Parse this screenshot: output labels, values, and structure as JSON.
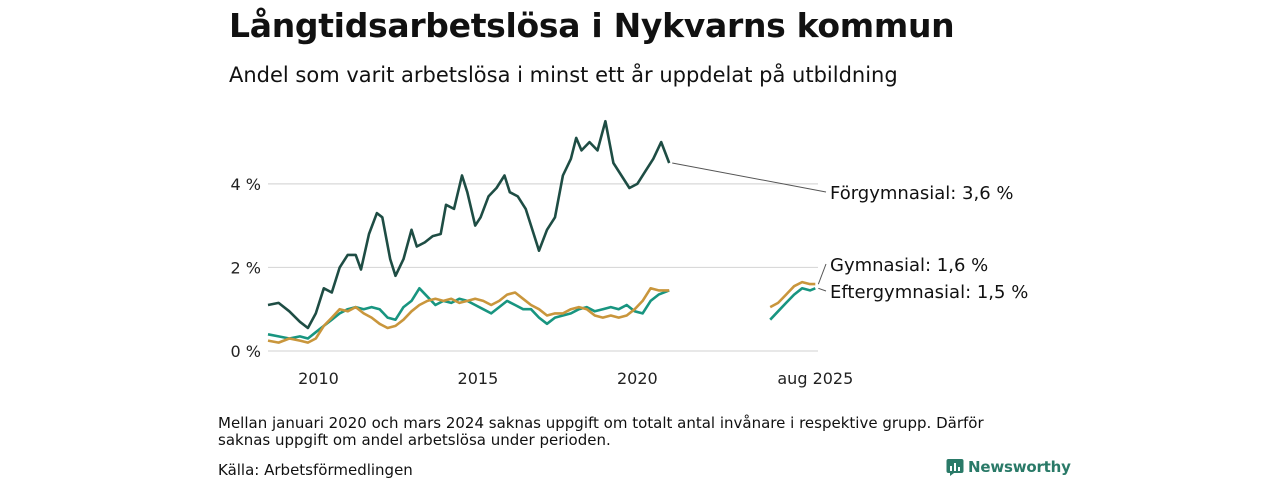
{
  "header": {
    "title": "Långtidsarbetslösa i Nykvarns kommun",
    "subtitle": "Andel som varit arbetslösa i minst ett år uppdelat på utbildning"
  },
  "footer": {
    "note": "Mellan januari 2020 och mars 2024 saknas uppgift om totalt antal invånare i respektive grupp. Därför saknas uppgift om andel arbetslösa under perioden.",
    "source": "Källa: Arbetsförmedlingen",
    "brand": "Newsworthy"
  },
  "colors": {
    "forgymnasial": "#1e4d44",
    "gymnasial": "#c9963c",
    "eftergymnasial": "#189580",
    "grid": "#d9d9d9",
    "brand": "#2a7a68"
  },
  "chart_data": {
    "type": "line",
    "y_tick_labels": [
      "0 %",
      "2 %",
      "4 %"
    ],
    "y_ticks": [
      0,
      2,
      4
    ],
    "ylim": [
      0,
      5.6
    ],
    "x_tick_labels": [
      "2010",
      "2015",
      "2020",
      "aug 2025"
    ],
    "x_ticks": [
      "2010-01",
      "2015-01",
      "2020-01",
      "2025-08"
    ],
    "xlim": [
      "2008-06",
      "2025-09"
    ],
    "gap": [
      "2021-01",
      "2024-03"
    ],
    "grid": true,
    "series": [
      {
        "name": "Förgymnasial",
        "end_label": "Förgymnasial: 3,6 %",
        "color_key": "forgymnasial",
        "points": [
          [
            "2008-06",
            1.1
          ],
          [
            "2008-10",
            1.15
          ],
          [
            "2009-02",
            0.95
          ],
          [
            "2009-06",
            0.7
          ],
          [
            "2009-09",
            0.55
          ],
          [
            "2009-12",
            0.9
          ],
          [
            "2010-03",
            1.5
          ],
          [
            "2010-06",
            1.4
          ],
          [
            "2010-09",
            2.0
          ],
          [
            "2010-12",
            2.3
          ],
          [
            "2011-03",
            2.3
          ],
          [
            "2011-05",
            1.95
          ],
          [
            "2011-08",
            2.8
          ],
          [
            "2011-11",
            3.3
          ],
          [
            "2012-01",
            3.2
          ],
          [
            "2012-04",
            2.2
          ],
          [
            "2012-06",
            1.8
          ],
          [
            "2012-09",
            2.2
          ],
          [
            "2012-12",
            2.9
          ],
          [
            "2013-02",
            2.5
          ],
          [
            "2013-05",
            2.6
          ],
          [
            "2013-08",
            2.75
          ],
          [
            "2013-11",
            2.8
          ],
          [
            "2014-01",
            3.5
          ],
          [
            "2014-04",
            3.4
          ],
          [
            "2014-07",
            4.2
          ],
          [
            "2014-09",
            3.8
          ],
          [
            "2014-12",
            3.0
          ],
          [
            "2015-02",
            3.2
          ],
          [
            "2015-05",
            3.7
          ],
          [
            "2015-08",
            3.9
          ],
          [
            "2015-11",
            4.2
          ],
          [
            "2016-01",
            3.8
          ],
          [
            "2016-04",
            3.7
          ],
          [
            "2016-07",
            3.4
          ],
          [
            "2016-10",
            2.8
          ],
          [
            "2016-12",
            2.4
          ],
          [
            "2017-03",
            2.9
          ],
          [
            "2017-06",
            3.2
          ],
          [
            "2017-09",
            4.2
          ],
          [
            "2017-12",
            4.6
          ],
          [
            "2018-02",
            5.1
          ],
          [
            "2018-04",
            4.8
          ],
          [
            "2018-07",
            5.0
          ],
          [
            "2018-10",
            4.8
          ],
          [
            "2019-01",
            5.5
          ],
          [
            "2019-04",
            4.5
          ],
          [
            "2019-07",
            4.2
          ],
          [
            "2019-10",
            3.9
          ],
          [
            "2020-01",
            4.0
          ],
          [
            "2020-04",
            4.3
          ],
          [
            "2020-07",
            4.6
          ],
          [
            "2020-10",
            5.0
          ],
          [
            "2021-01",
            4.5
          ]
        ]
      },
      {
        "name": "Gymnasial",
        "end_label": "Gymnasial: 1,6 %",
        "color_key": "gymnasial",
        "points": [
          [
            "2008-06",
            0.25
          ],
          [
            "2008-10",
            0.2
          ],
          [
            "2009-02",
            0.3
          ],
          [
            "2009-06",
            0.25
          ],
          [
            "2009-09",
            0.2
          ],
          [
            "2009-12",
            0.3
          ],
          [
            "2010-03",
            0.6
          ],
          [
            "2010-06",
            0.8
          ],
          [
            "2010-09",
            1.0
          ],
          [
            "2010-12",
            0.95
          ],
          [
            "2011-03",
            1.05
          ],
          [
            "2011-06",
            0.9
          ],
          [
            "2011-09",
            0.8
          ],
          [
            "2011-12",
            0.65
          ],
          [
            "2012-03",
            0.55
          ],
          [
            "2012-06",
            0.6
          ],
          [
            "2012-09",
            0.75
          ],
          [
            "2012-12",
            0.95
          ],
          [
            "2013-03",
            1.1
          ],
          [
            "2013-06",
            1.2
          ],
          [
            "2013-09",
            1.25
          ],
          [
            "2013-12",
            1.2
          ],
          [
            "2014-03",
            1.25
          ],
          [
            "2014-06",
            1.15
          ],
          [
            "2014-09",
            1.2
          ],
          [
            "2014-12",
            1.25
          ],
          [
            "2015-03",
            1.2
          ],
          [
            "2015-06",
            1.1
          ],
          [
            "2015-09",
            1.2
          ],
          [
            "2015-12",
            1.35
          ],
          [
            "2016-03",
            1.4
          ],
          [
            "2016-06",
            1.25
          ],
          [
            "2016-09",
            1.1
          ],
          [
            "2016-12",
            1.0
          ],
          [
            "2017-03",
            0.85
          ],
          [
            "2017-06",
            0.9
          ],
          [
            "2017-09",
            0.9
          ],
          [
            "2017-12",
            1.0
          ],
          [
            "2018-03",
            1.05
          ],
          [
            "2018-06",
            1.0
          ],
          [
            "2018-09",
            0.85
          ],
          [
            "2018-12",
            0.8
          ],
          [
            "2019-03",
            0.85
          ],
          [
            "2019-06",
            0.8
          ],
          [
            "2019-09",
            0.85
          ],
          [
            "2019-12",
            1.0
          ],
          [
            "2020-03",
            1.2
          ],
          [
            "2020-06",
            1.5
          ],
          [
            "2020-09",
            1.45
          ],
          [
            "2021-01",
            1.45
          ],
          [
            "2024-03",
            1.05
          ],
          [
            "2024-06",
            1.15
          ],
          [
            "2024-09",
            1.35
          ],
          [
            "2024-12",
            1.55
          ],
          [
            "2025-03",
            1.65
          ],
          [
            "2025-06",
            1.6
          ],
          [
            "2025-08",
            1.6
          ]
        ]
      },
      {
        "name": "Eftergymnasial",
        "end_label": "Eftergymnasial: 1,5 %",
        "color_key": "eftergymnasial",
        "points": [
          [
            "2008-06",
            0.4
          ],
          [
            "2008-10",
            0.35
          ],
          [
            "2009-02",
            0.3
          ],
          [
            "2009-06",
            0.35
          ],
          [
            "2009-09",
            0.3
          ],
          [
            "2009-12",
            0.45
          ],
          [
            "2010-03",
            0.6
          ],
          [
            "2010-06",
            0.75
          ],
          [
            "2010-09",
            0.9
          ],
          [
            "2010-12",
            1.0
          ],
          [
            "2011-03",
            1.05
          ],
          [
            "2011-06",
            1.0
          ],
          [
            "2011-09",
            1.05
          ],
          [
            "2011-12",
            1.0
          ],
          [
            "2012-03",
            0.8
          ],
          [
            "2012-06",
            0.75
          ],
          [
            "2012-09",
            1.05
          ],
          [
            "2012-12",
            1.2
          ],
          [
            "2013-03",
            1.5
          ],
          [
            "2013-06",
            1.3
          ],
          [
            "2013-09",
            1.1
          ],
          [
            "2013-12",
            1.2
          ],
          [
            "2014-03",
            1.15
          ],
          [
            "2014-06",
            1.25
          ],
          [
            "2014-09",
            1.2
          ],
          [
            "2014-12",
            1.1
          ],
          [
            "2015-03",
            1.0
          ],
          [
            "2015-06",
            0.9
          ],
          [
            "2015-09",
            1.05
          ],
          [
            "2015-12",
            1.2
          ],
          [
            "2016-03",
            1.1
          ],
          [
            "2016-06",
            1.0
          ],
          [
            "2016-09",
            1.0
          ],
          [
            "2016-12",
            0.8
          ],
          [
            "2017-03",
            0.65
          ],
          [
            "2017-06",
            0.8
          ],
          [
            "2017-09",
            0.85
          ],
          [
            "2017-12",
            0.9
          ],
          [
            "2018-03",
            1.0
          ],
          [
            "2018-06",
            1.05
          ],
          [
            "2018-09",
            0.95
          ],
          [
            "2018-12",
            1.0
          ],
          [
            "2019-03",
            1.05
          ],
          [
            "2019-06",
            1.0
          ],
          [
            "2019-09",
            1.1
          ],
          [
            "2019-12",
            0.95
          ],
          [
            "2020-03",
            0.9
          ],
          [
            "2020-06",
            1.2
          ],
          [
            "2020-09",
            1.35
          ],
          [
            "2021-01",
            1.45
          ],
          [
            "2024-03",
            0.75
          ],
          [
            "2024-06",
            0.95
          ],
          [
            "2024-09",
            1.15
          ],
          [
            "2024-12",
            1.35
          ],
          [
            "2025-03",
            1.5
          ],
          [
            "2025-06",
            1.45
          ],
          [
            "2025-08",
            1.5
          ]
        ]
      }
    ]
  }
}
